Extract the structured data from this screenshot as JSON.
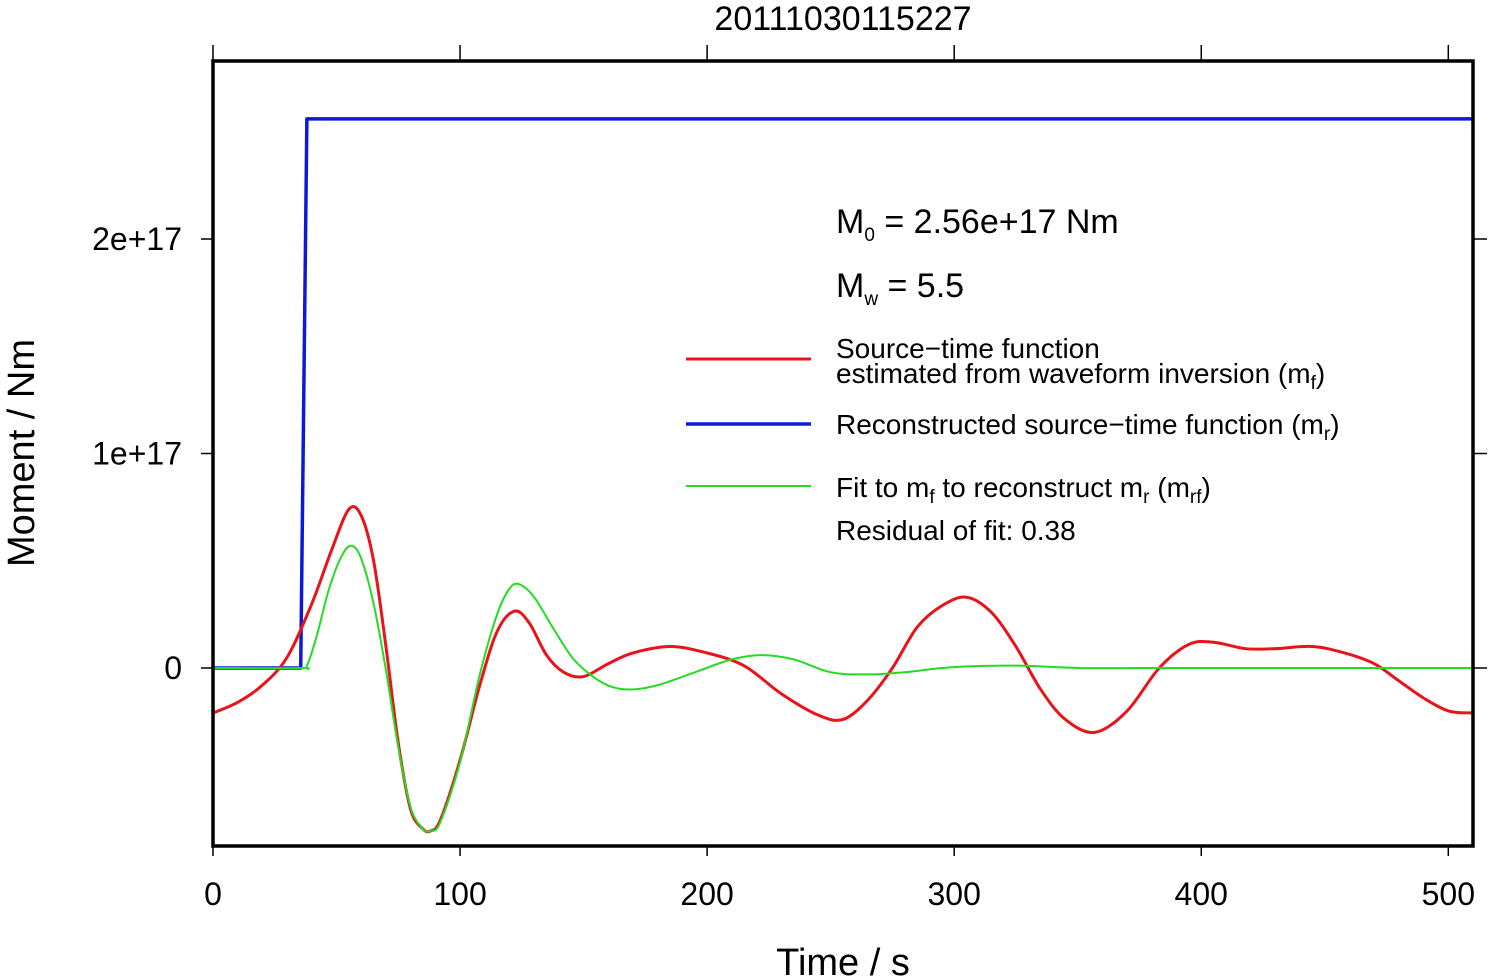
{
  "chart_data": {
    "type": "line",
    "title": "20111030115227",
    "xlabel": "Time / s",
    "ylabel": "Moment / Nm",
    "xlim": [
      0,
      510
    ],
    "ylim": [
      -8.3e+16,
      2.83e+17
    ],
    "xticks": [
      0,
      100,
      200,
      300,
      400,
      500
    ],
    "xtick_labels": [
      "0",
      "100",
      "200",
      "300",
      "400",
      "500"
    ],
    "yticks": [
      0,
      1e+17,
      2e+17
    ],
    "ytick_labels": [
      "0",
      "1e+17",
      "2e+17"
    ],
    "grid": false,
    "annotations": {
      "m0": {
        "symbol": "M",
        "sub": "0",
        "text": " = 2.56e+17 Nm"
      },
      "mw": {
        "symbol": "M",
        "sub": "w",
        "text": " = 5.5"
      },
      "residual": "Residual of fit: 0.38"
    },
    "legend_position": "right",
    "series": [
      {
        "name": "Source−time function estimated from waveform inversion (m_f)",
        "legend_line1": "Source−time function",
        "legend_line2_pre": "estimated from waveform inversion (m",
        "legend_line2_sub": "f",
        "legend_line2_post": ")",
        "color": "#e8141a",
        "width": 3,
        "x": [
          0,
          10,
          20,
          30,
          40,
          48,
          55,
          60,
          65,
          70,
          75,
          80,
          85,
          88,
          92,
          100,
          108,
          115,
          122,
          128,
          135,
          142,
          150,
          160,
          170,
          185,
          200,
          215,
          230,
          245,
          255,
          265,
          275,
          285,
          295,
          305,
          315,
          325,
          335,
          345,
          357,
          370,
          383,
          395,
          405,
          418,
          430,
          445,
          458,
          470,
          480,
          490,
          500,
          510
        ],
        "y": [
          -2.1e+16,
          -1.6e+16,
          -8000000000000000.0,
          5000000000000000.0,
          3e+16,
          5.5e+16,
          7.4e+16,
          7.1e+16,
          5e+16,
          1e+16,
          -3.5e+16,
          -6.6e+16,
          -7.5e+16,
          -7.6e+16,
          -7.1e+16,
          -4.3e+16,
          -8000000000000000.0,
          1.7e+16,
          2.65e+16,
          2.1e+16,
          6000000000000000.0,
          -2000000000000000.0,
          -4000000000000000.0,
          2000000000000000.0,
          7000000000000000.0,
          1e+16,
          7000000000000000.0,
          1000000000000000.0,
          -1.2e+16,
          -2.2e+16,
          -2.4e+16,
          -1.5e+16,
          0,
          1.9e+16,
          2.9e+16,
          3.3e+16,
          2.6e+16,
          1e+16,
          -1e+16,
          -2.4e+16,
          -3e+16,
          -2e+16,
          0,
          1.1e+16,
          1.2e+16,
          9000000000000000.0,
          9000000000000000.0,
          1e+16,
          7000000000000000.0,
          2000000000000000.0,
          -6000000000000000.0,
          -1.4e+16,
          -2e+16,
          -2.1e+16
        ]
      },
      {
        "name": "Reconstructed source−time function (m_r)",
        "legend_pre": "Reconstructed source−time function (m",
        "legend_sub": "r",
        "legend_post": ")",
        "color": "#0a1ad6",
        "width": 3.5,
        "x": [
          0,
          35.5,
          38,
          510
        ],
        "y": [
          0,
          0,
          2.56e+17,
          2.56e+17
        ]
      },
      {
        "name": "Fit to m_f to reconstruct m_r (m_rf)",
        "legend_pre": "Fit to m",
        "legend_sub1": "f",
        "legend_mid": " to reconstruct m",
        "legend_sub2": "r",
        "legend_mid2": " (m",
        "legend_sub3": "rf",
        "legend_post": ")",
        "color": "#22dd22",
        "width": 2,
        "x": [
          0,
          35.5,
          38,
          42,
          47,
          52,
          56,
          60,
          65,
          70,
          75,
          80,
          85,
          88,
          92,
          100,
          108,
          115,
          120,
          124,
          130,
          138,
          146,
          155,
          162,
          170,
          180,
          195,
          210,
          222,
          235,
          250,
          265,
          280,
          295,
          312,
          330,
          350,
          380,
          420,
          510
        ],
        "y": [
          0,
          0,
          1000000000000000.0,
          1.5e+16,
          3.7e+16,
          5.2e+16,
          5.7e+16,
          5.1e+16,
          3e+16,
          -1000000000000000.0,
          -3.7e+16,
          -6.5e+16,
          -7.5e+16,
          -7.6e+16,
          -7.2e+16,
          -4.4e+16,
          -3000000000000000.0,
          2.5e+16,
          3.7e+16,
          3.9e+16,
          3.3e+16,
          1.8e+16,
          4000000000000000.0,
          -5000000000000000.0,
          -9000000000000000.0,
          -1e+16,
          -8000000000000000.0,
          -2000000000000000.0,
          4000000000000000.0,
          6000000000000000.0,
          4000000000000000.0,
          -2000000000000000.0,
          -3000000000000000.0,
          -2000000000000000.0,
          0,
          1000000000000000.0,
          1000000000000000.0,
          0,
          0,
          0,
          0
        ]
      }
    ]
  }
}
